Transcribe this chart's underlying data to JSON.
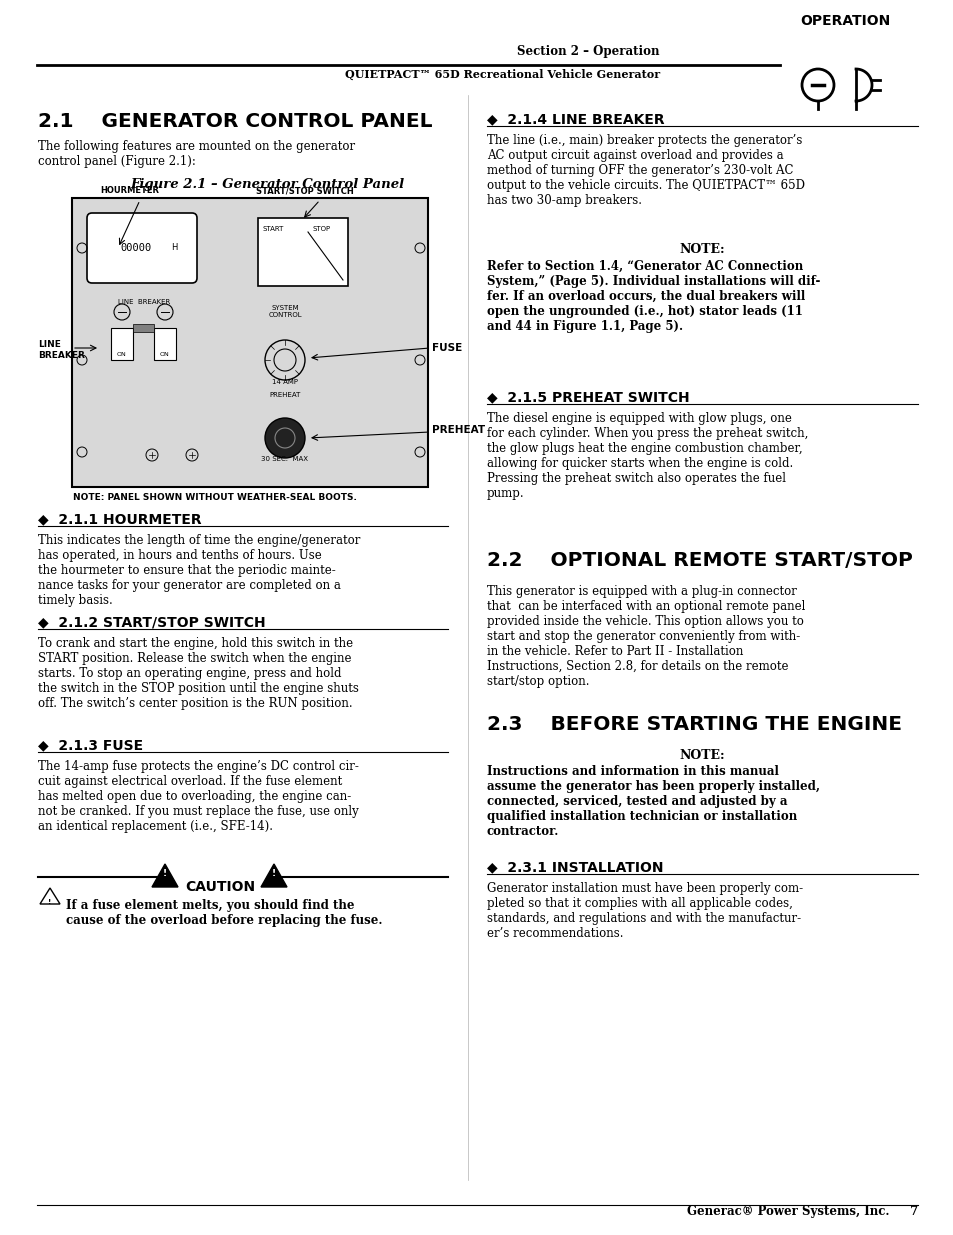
{
  "page_bg": "#ffffff",
  "header_text1": "Section 2 – Operation",
  "header_text2": "QUIETPACT™ 65D Recreational Vehicle Generator",
  "footer_text": "Generac® Power Systems, Inc.     7",
  "section21_title": "2.1    GENERATOR CONTROL PANEL",
  "section21_intro": "The following features are mounted on the generator\ncontrol panel (Figure 2.1):",
  "figure_caption": "Figure 2.1 – Generator Control Panel",
  "figure_note": "NOTE: PANEL SHOWN WITHOUT WEATHER-SEAL BOOTS.",
  "sec211_head": "◆  2.1.1 HOURMETER",
  "sec211_body": "This indicates the length of time the engine/generator\nhas operated, in hours and tenths of hours. Use\nthe hourmeter to ensure that the periodic mainte-\nnance tasks for your generator are completed on a\ntimely basis.",
  "sec212_head": "◆  2.1.2 START/STOP SWITCH",
  "sec212_body": "To crank and start the engine, hold this switch in the\nSTART position. Release the switch when the engine\nstarts. To stop an operating engine, press and hold\nthe switch in the STOP position until the engine shuts\noff. The switch’s center position is the RUN position.",
  "sec213_head": "◆  2.1.3 FUSE",
  "sec213_body": "The 14-amp fuse protects the engine’s DC control cir-\ncuit against electrical overload. If the fuse element\nhas melted open due to overloading, the engine can-\nnot be cranked. If you must replace the fuse, use only\nan identical replacement (i.e., SFE-14).",
  "caution_text": "CAUTION",
  "caution_body": "If a fuse element melts, you should find the\ncause of the overload before replacing the fuse.",
  "sec214_head": "◆  2.1.4 LINE BREAKER",
  "sec214_body": "The line (i.e., main) breaker protects the generator’s\nAC output circuit against overload and provides a\nmethod of turning OFF the generator’s 230-volt AC\noutput to the vehicle circuits. The QUIETPACT™ 65D\nhas two 30-amp breakers.",
  "sec214_note_head": "NOTE:",
  "sec214_note_body": "Refer to Section 1.4, “Generator AC Connection\nSystem,” (Page 5). Individual installations will dif-\nfer. If an overload occurs, the dual breakers will\nopen the ungrounded (i.e., hot) stator leads (11\nand 44 in Figure 1.1, Page 5).",
  "sec215_head": "◆  2.1.5 PREHEAT SWITCH",
  "sec215_body": "The diesel engine is equipped with glow plugs, one\nfor each cylinder. When you press the preheat switch,\nthe glow plugs heat the engine combustion chamber,\nallowing for quicker starts when the engine is cold.\nPressing the preheat switch also operates the fuel\npump.",
  "sec22_title": "2.2    OPTIONAL REMOTE START/STOP",
  "sec22_body": "This generator is equipped with a plug-in connector\nthat  can be interfaced with an optional remote panel\nprovided inside the vehicle. This option allows you to\nstart and stop the generator conveniently from with-\nin the vehicle. Refer to Part II - Installation\nInstructions, Section 2.8, for details on the remote\nstart/stop option.",
  "sec23_title": "2.3    BEFORE STARTING THE ENGINE",
  "sec23_note_head": "NOTE:",
  "sec23_note_body": "Instructions and information in this manual\nassume the generator has been properly installed,\nconnected, serviced, tested and adjusted by a\nqualified installation technician or installation\ncontractor.",
  "sec231_head": "◆  2.3.1 INSTALLATION",
  "sec231_body": "Generator installation must have been properly com-\npleted so that it complies with all applicable codes,\nstandards, and regulations and with the manufactur-\ner’s recommendations.",
  "operation_label": "OPERATION"
}
